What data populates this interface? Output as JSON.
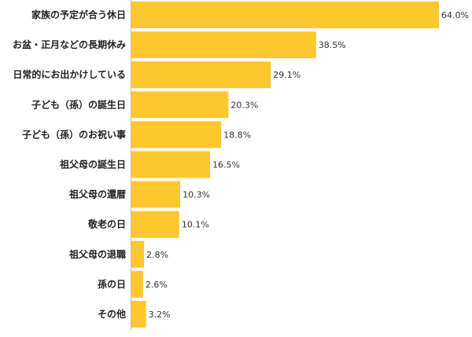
{
  "chart_data": {
    "type": "bar",
    "orientation": "horizontal",
    "categories": [
      "家族の予定が合う休日",
      "お盆・正月などの長期休み",
      "日常的にお出かけしている",
      "子ども（孫）の誕生日",
      "子ども（孫）のお祝い事",
      "祖父母の誕生日",
      "祖父母の還暦",
      "敬老の日",
      "祖父母の退職",
      "孫の日",
      "その他"
    ],
    "values": [
      64.0,
      38.5,
      29.1,
      20.3,
      18.8,
      16.5,
      10.3,
      10.1,
      2.8,
      2.6,
      3.2
    ],
    "value_labels": [
      "64.0%",
      "38.5%",
      "29.1%",
      "20.3%",
      "18.8%",
      "16.5%",
      "10.3%",
      "10.1%",
      "2.8%",
      "2.6%",
      "3.2%"
    ],
    "xlim": [
      0,
      64.0
    ],
    "bar_color": "#fdc82f",
    "axis_color": "#bbbbbb",
    "grid": false
  }
}
